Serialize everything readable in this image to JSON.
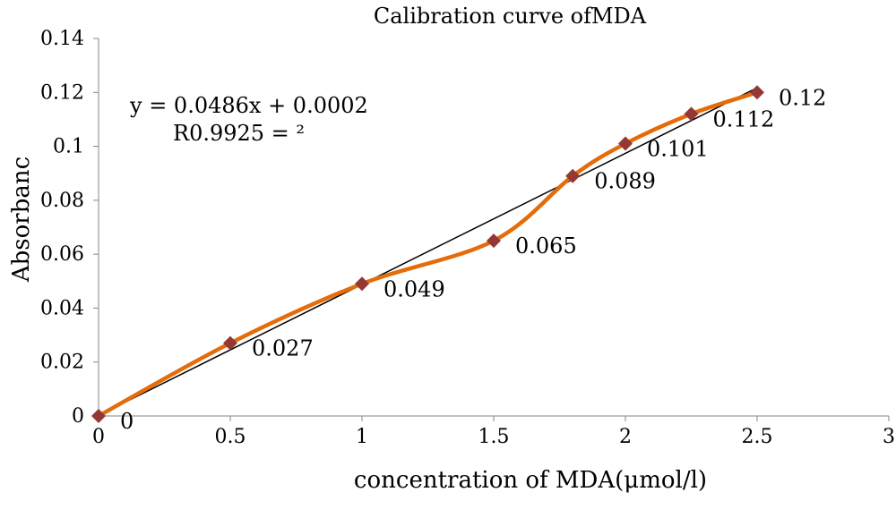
{
  "chart_data": {
    "type": "scatter",
    "title": "Calibration curve ofMDA",
    "xlabel": "concentration of MDA(μmol/l)",
    "ylabel": "Absorbanc",
    "xlim": [
      0,
      3
    ],
    "ylim": [
      0,
      0.14
    ],
    "x_ticks": [
      "0",
      "0.5",
      "1",
      "1.5",
      "2",
      "2.5",
      "3"
    ],
    "y_ticks": [
      "0",
      "0.02",
      "0.04",
      "0.06",
      "0.08",
      "0.1",
      "0.12",
      "0.14"
    ],
    "grid": false,
    "series": [
      {
        "x": [
          0,
          0.5,
          1,
          1.5,
          1.8,
          2,
          2.25,
          2.5
        ],
        "y": [
          0,
          0.027,
          0.049,
          0.065,
          0.089,
          0.101,
          0.112,
          0.12
        ],
        "labels": [
          "0",
          "0.027",
          "0.049",
          "0.065",
          "0.089",
          "0.101",
          "0.112",
          "0.12"
        ],
        "line": "smooth",
        "line_color": "#E46C0A",
        "marker": "diamond",
        "marker_color": "#953735"
      }
    ],
    "trendline": {
      "type": "linear",
      "slope": 0.0486,
      "intercept": 0.0002,
      "color": "#000000"
    },
    "equation_text": "y = 0.0486x + 0.0002",
    "r2_text": "R0.9925 = ²"
  }
}
